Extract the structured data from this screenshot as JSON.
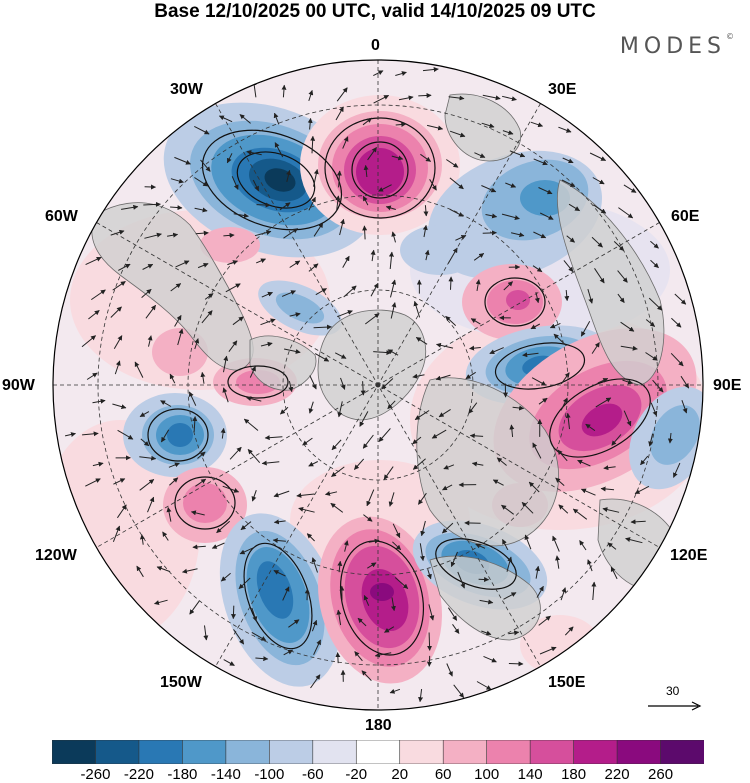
{
  "title": "Base 12/10/2025 00 UTC, valid 14/10/2025 09 UTC",
  "brand": "MODES",
  "brand_mark": "©",
  "longitude_labels": {
    "n": "0",
    "ne": "30E",
    "e1": "60E",
    "e": "90E",
    "se1": "120E",
    "se": "150E",
    "s": "180",
    "sw": "150W",
    "sw1": "120W",
    "w": "90W",
    "nw1": "60W",
    "nw": "30W"
  },
  "colorbar": {
    "ticks": [
      "-260",
      "-220",
      "-180",
      "-140",
      "-100",
      "-60",
      "-20",
      "20",
      "60",
      "100",
      "140",
      "180",
      "220",
      "260"
    ],
    "colors": [
      "#0b3a5a",
      "#15598a",
      "#2978b4",
      "#4f98c9",
      "#8ab5da",
      "#bccde6",
      "#e2e3f0",
      "#ffffff",
      "#f9dbe0",
      "#f4b0c4",
      "#ec82ad",
      "#d64f9c",
      "#b41d8a",
      "#8a0a7e",
      "#5c0a6c"
    ]
  },
  "reference_vector": "30",
  "colors": {
    "land": "#cfcfcf",
    "graticule": "#333333",
    "circle": "#000000"
  }
}
